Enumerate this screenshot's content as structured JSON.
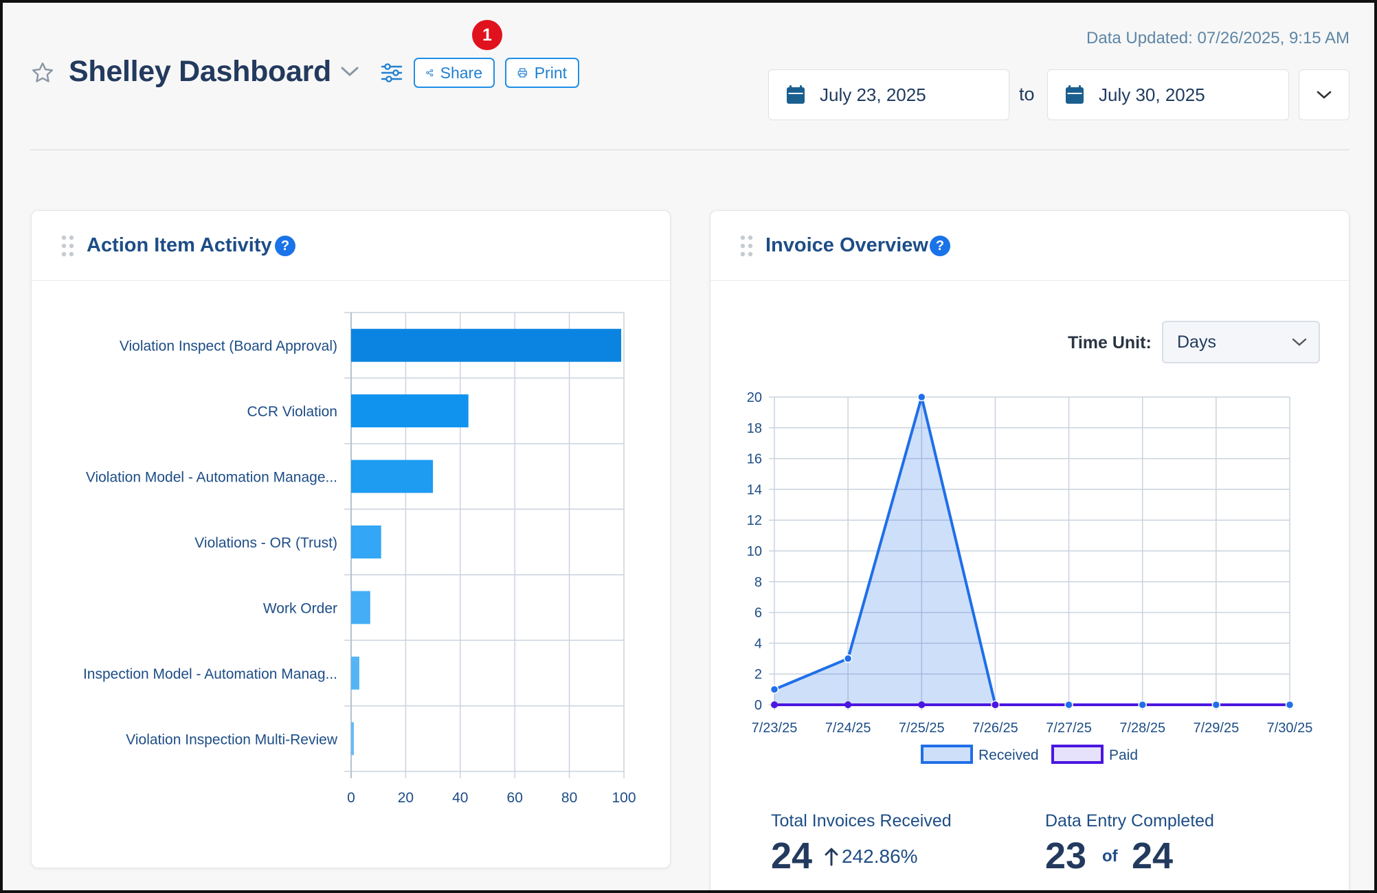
{
  "header": {
    "title": "Shelley Dashboard",
    "share_label": "Share",
    "print_label": "Print",
    "notification_count": "1",
    "data_updated": "Data Updated: 07/26/2025, 9:15 AM",
    "date_from": "July 23, 2025",
    "to_label": "to",
    "date_to": "July 30, 2025"
  },
  "action_card": {
    "title": "Action Item Activity",
    "help": "?"
  },
  "invoice_card": {
    "title": "Invoice Overview",
    "help": "?",
    "time_unit_label": "Time Unit:",
    "time_unit_value": "Days",
    "total_received_label": "Total Invoices Received",
    "total_received_value": "24",
    "total_received_change": "242.86%",
    "data_entry_label": "Data Entry Completed",
    "data_entry_done": "23",
    "data_entry_of": "of",
    "data_entry_total": "24"
  },
  "colors": {
    "accent": "#1a73e8",
    "badge": "#e0121e",
    "received": "#1f6fe8",
    "paid": "#4b16e0"
  },
  "chart_data": [
    {
      "type": "bar",
      "orientation": "horizontal",
      "categories": [
        "Violation Inspect (Board Approval)",
        "CCR Violation",
        "Violation Model - Automation Manage...",
        "Violations - OR (Trust)",
        "Work Order",
        "Inspection Model - Automation Manag...",
        "Violation Inspection Multi-Review"
      ],
      "values": [
        99,
        43,
        30,
        11,
        7,
        3,
        1
      ],
      "bar_colors": [
        "#0a84e0",
        "#0f93ee",
        "#1d9cf2",
        "#33a6f5",
        "#44adf6",
        "#55b4f6",
        "#66bbf7"
      ],
      "xlim": [
        0,
        100
      ],
      "xticks": [
        0,
        20,
        40,
        60,
        80,
        100
      ],
      "grid": true
    },
    {
      "type": "area",
      "x": [
        "7/23/25",
        "7/24/25",
        "7/25/25",
        "7/26/25",
        "7/27/25",
        "7/28/25",
        "7/29/25",
        "7/30/25"
      ],
      "series": [
        {
          "name": "Received",
          "values": [
            1,
            3,
            20,
            0,
            0,
            0,
            0,
            0
          ]
        },
        {
          "name": "Paid",
          "values": [
            0,
            0,
            0,
            0,
            0,
            0,
            0,
            0
          ]
        }
      ],
      "ylim": [
        0,
        20
      ],
      "yticks": [
        0,
        2,
        4,
        6,
        8,
        10,
        12,
        14,
        16,
        18,
        20
      ],
      "grid": true,
      "legend": "bottom"
    }
  ]
}
